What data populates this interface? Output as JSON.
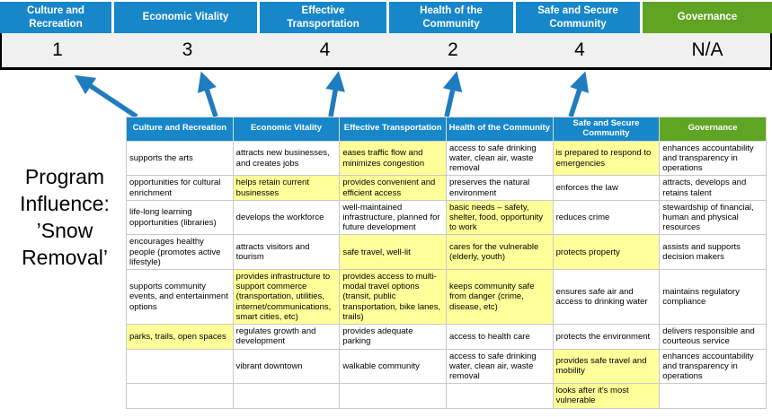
{
  "title": "Program Influence: ’Snow Removal’",
  "categories": [
    {
      "label": "Culture and Recreation",
      "score": "1"
    },
    {
      "label": "Economic Vitality",
      "score": "3"
    },
    {
      "label": "Effective Transportation",
      "score": "4"
    },
    {
      "label": "Health of the Community",
      "score": "2"
    },
    {
      "label": "Safe and Secure Community",
      "score": "4"
    },
    {
      "label": "Governance",
      "score": "N/A"
    }
  ],
  "colors": {
    "header_blue": "#1787C9",
    "header_green": "#60A423",
    "highlight_yellow": "#FFFF99",
    "arrow_blue": "#1F7CBF",
    "score_row_bg": "#F0F0F0"
  },
  "table": {
    "headers": [
      "Culture and Recreation",
      "Economic Vitality",
      "Effective Transportation",
      "Health of the Community",
      "Safe and Secure Community",
      "Governance"
    ],
    "rows": [
      [
        {
          "text": "supports the arts",
          "highlight": false
        },
        {
          "text": "attracts new businesses, and creates jobs",
          "highlight": false
        },
        {
          "text": "eases traffic flow and minimizes congestion",
          "highlight": true
        },
        {
          "text": "access to safe drinking water, clean air, waste removal",
          "highlight": false
        },
        {
          "text": "is prepared to respond to emergencies",
          "highlight": true
        },
        {
          "text": "enhances accountability and transparency in operations",
          "highlight": false
        }
      ],
      [
        {
          "text": "opportunities for cultural enrichment",
          "highlight": false
        },
        {
          "text": "helps retain current businesses",
          "highlight": true
        },
        {
          "text": "provides convenient and efficient access",
          "highlight": true
        },
        {
          "text": "preserves the natural environment",
          "highlight": false
        },
        {
          "text": "enforces the law",
          "highlight": false
        },
        {
          "text": "attracts, develops and retains talent",
          "highlight": false
        }
      ],
      [
        {
          "text": "life-long learning opportunities (libraries)",
          "highlight": false
        },
        {
          "text": "develops the workforce",
          "highlight": false
        },
        {
          "text": "well-maintained infrastructure, planned for future development",
          "highlight": false
        },
        {
          "text": "basic needs – safety, shelter, food, opportunity to work",
          "highlight": true
        },
        {
          "text": "reduces crime",
          "highlight": false
        },
        {
          "text": "stewardship of financial, human and physical resources",
          "highlight": false
        }
      ],
      [
        {
          "text": "encourages healthy people (promotes active lifestyle)",
          "highlight": false
        },
        {
          "text": "attracts visitors and tourism",
          "highlight": false
        },
        {
          "text": "safe travel, well-lit",
          "highlight": true
        },
        {
          "text": "cares for the vulnerable (elderly, youth)",
          "highlight": true
        },
        {
          "text": "protects property",
          "highlight": true
        },
        {
          "text": "assists and supports decision makers",
          "highlight": false
        }
      ],
      [
        {
          "text": "supports community events, and entertainment options",
          "highlight": false
        },
        {
          "text": "provides infrastructure to support commerce (transportation, utilities, internet/communications, smart cities, etc)",
          "highlight": true
        },
        {
          "text": "provides access to multi-modal travel options (transit, public transportation, bike lanes, trails)",
          "highlight": true
        },
        {
          "text": "keeps community safe from danger (crime, disease, etc)",
          "highlight": true
        },
        {
          "text": "ensures safe air and access to drinking water",
          "highlight": false
        },
        {
          "text": "maintains regulatory compliance",
          "highlight": false
        }
      ],
      [
        {
          "text": "parks, trails, open spaces",
          "highlight": true
        },
        {
          "text": "regulates growth and development",
          "highlight": false
        },
        {
          "text": "provides adequate parking",
          "highlight": false
        },
        {
          "text": "access to health care",
          "highlight": false
        },
        {
          "text": "protects the environment",
          "highlight": false
        },
        {
          "text": "delivers responsible and courteous service",
          "highlight": false
        }
      ],
      [
        {
          "text": "",
          "highlight": false
        },
        {
          "text": "vibrant downtown",
          "highlight": false
        },
        {
          "text": "walkable community",
          "highlight": false
        },
        {
          "text": "access to safe drinking water, clean air, waste removal",
          "highlight": false
        },
        {
          "text": "provides safe travel and mobility",
          "highlight": true
        },
        {
          "text": "enhances accountability and transparency in operations",
          "highlight": false
        }
      ],
      [
        {
          "text": "",
          "highlight": false
        },
        {
          "text": "",
          "highlight": false
        },
        {
          "text": "",
          "highlight": false
        },
        {
          "text": "",
          "highlight": false
        },
        {
          "text": "looks after it's most vulnerable",
          "highlight": true
        },
        {
          "text": "",
          "highlight": false
        }
      ]
    ]
  }
}
